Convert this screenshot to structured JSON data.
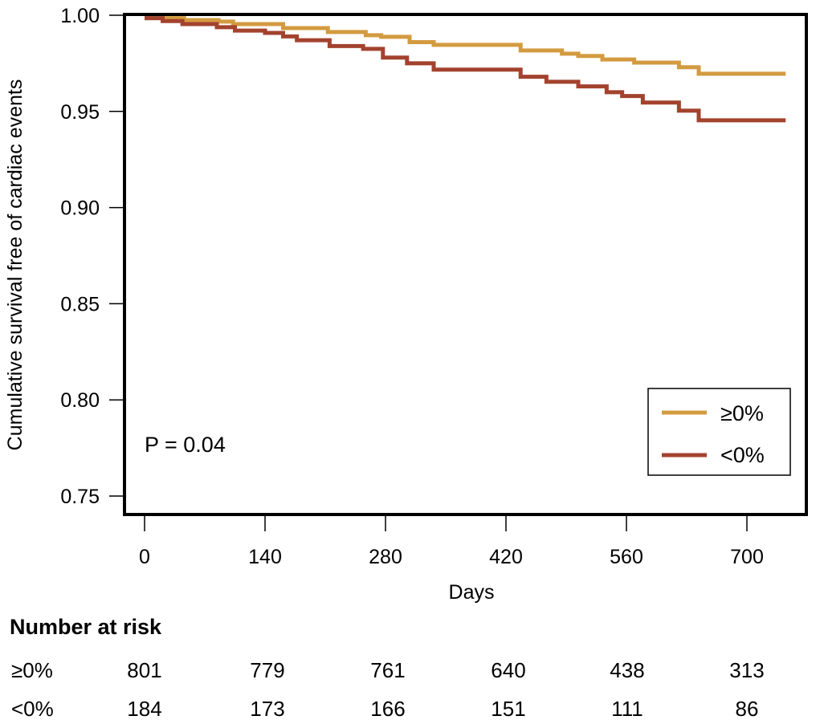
{
  "chart_data": {
    "type": "line",
    "subtype": "kaplan-meier step",
    "title": "",
    "xlabel": "Days",
    "ylabel": "Cumulative survival free of cardiac events",
    "xlim": [
      -24,
      770
    ],
    "ylim": [
      0.74,
      1.0
    ],
    "xticks": [
      0,
      140,
      280,
      420,
      560,
      700
    ],
    "xtick_labels": [
      "0",
      "140",
      "280",
      "420",
      "560",
      "700"
    ],
    "yticks": [
      1.0,
      0.95,
      0.9,
      0.85,
      0.8,
      0.75
    ],
    "ytick_labels": [
      "1.00",
      "0.95",
      "0.90",
      "0.85",
      "0.80",
      "0.75"
    ],
    "grid": false,
    "legend_position": "bottom-right",
    "annotation": "P = 0.04",
    "series": [
      {
        "name": "≥0%",
        "color": "#D39B40",
        "x": [
          0,
          46,
          86,
          103,
          161,
          213,
          257,
          275,
          308,
          336,
          437,
          485,
          504,
          532,
          569,
          621,
          644,
          745
        ],
        "y": [
          0.9985,
          0.9975,
          0.9967,
          0.9954,
          0.9933,
          0.9913,
          0.9896,
          0.9888,
          0.986,
          0.9846,
          0.9817,
          0.98,
          0.9788,
          0.977,
          0.9754,
          0.973,
          0.9696,
          0.9696
        ]
      },
      {
        "name": "<0%",
        "color": "#A3422E",
        "x": [
          0,
          21,
          44,
          84,
          105,
          140,
          161,
          177,
          215,
          254,
          277,
          305,
          336,
          437,
          467,
          504,
          537,
          555,
          579,
          621,
          644,
          745
        ],
        "y": [
          0.9985,
          0.997,
          0.9954,
          0.9938,
          0.992,
          0.9908,
          0.989,
          0.987,
          0.984,
          0.9825,
          0.978,
          0.975,
          0.9717,
          0.968,
          0.9654,
          0.963,
          0.96,
          0.958,
          0.9546,
          0.9504,
          0.9454,
          0.9454
        ]
      }
    ],
    "number_at_risk": {
      "title": "Number at risk",
      "time_points": [
        0,
        140,
        280,
        420,
        560,
        700
      ],
      "rows": [
        {
          "label": "≥0%",
          "values": [
            "801",
            "779",
            "761",
            "640",
            "438",
            "313"
          ]
        },
        {
          "label": "<0%",
          "values": [
            "184",
            "173",
            "166",
            "151",
            "111",
            "86"
          ]
        }
      ]
    }
  }
}
